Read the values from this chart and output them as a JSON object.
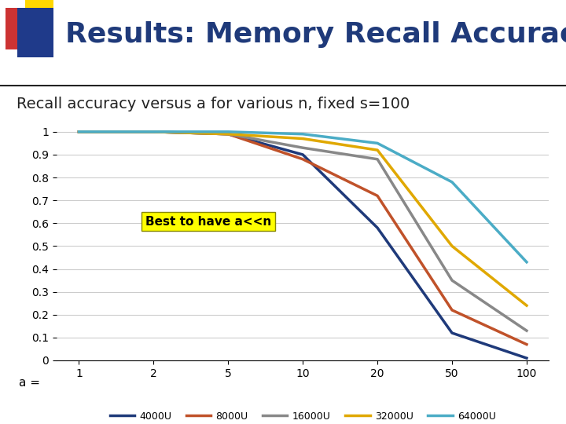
{
  "title": "Results: Memory Recall Accuracy",
  "subtitle": "Recall accuracy versus a for various n, fixed s=100",
  "annotation": "Best to have a<<n",
  "xlabel": "a =",
  "x_ticks": [
    1,
    2,
    5,
    10,
    20,
    50,
    100
  ],
  "y_ticks": [
    0,
    0.1,
    0.2,
    0.3,
    0.4,
    0.5,
    0.6,
    0.7,
    0.8,
    0.9,
    1
  ],
  "series": [
    {
      "label": "4000U",
      "color": "#1F3A7A",
      "x": [
        1,
        2,
        5,
        10,
        20,
        50,
        100
      ],
      "y": [
        1.0,
        1.0,
        0.99,
        0.9,
        0.58,
        0.12,
        0.01
      ]
    },
    {
      "label": "8000U",
      "color": "#C0522A",
      "x": [
        1,
        2,
        5,
        10,
        20,
        50,
        100
      ],
      "y": [
        1.0,
        1.0,
        0.99,
        0.88,
        0.72,
        0.22,
        0.07
      ]
    },
    {
      "label": "16000U",
      "color": "#888888",
      "x": [
        1,
        2,
        5,
        10,
        20,
        50,
        100
      ],
      "y": [
        1.0,
        1.0,
        0.99,
        0.93,
        0.88,
        0.35,
        0.13
      ]
    },
    {
      "label": "32000U",
      "color": "#E0A800",
      "x": [
        1,
        2,
        5,
        10,
        20,
        50,
        100
      ],
      "y": [
        1.0,
        1.0,
        0.99,
        0.97,
        0.92,
        0.5,
        0.24
      ]
    },
    {
      "label": "64000U",
      "color": "#4BACC6",
      "x": [
        1,
        2,
        5,
        10,
        20,
        50,
        100
      ],
      "y": [
        1.0,
        1.0,
        1.0,
        0.99,
        0.95,
        0.78,
        0.43
      ]
    }
  ],
  "background_color": "#FFFFFF",
  "plot_bg_color": "#FFFFFF",
  "title_color": "#1F3A7A",
  "title_fontsize": 26,
  "subtitle_fontsize": 14,
  "annotation_bg": "#FFFF00",
  "annotation_fontsize": 11,
  "line_width": 2.5,
  "header_bg_colors": [
    "#CC0000",
    "#1F3A7A",
    "#FFD700"
  ],
  "ylim": [
    0,
    1.02
  ],
  "grid_color": "#CCCCCC"
}
